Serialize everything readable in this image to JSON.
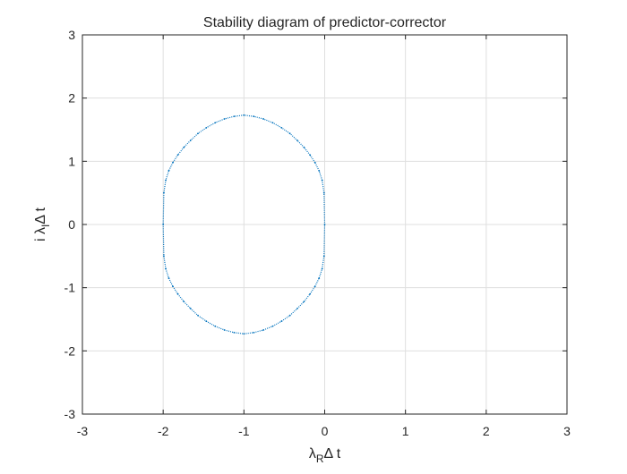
{
  "chart_data": {
    "type": "scatter",
    "title": "Stability diagram of predictor-corrector",
    "xlabel": {
      "base1": "λ",
      "sub1": "R",
      "rest": "Δ t"
    },
    "ylabel": {
      "pre": "i λ",
      "sub": "I",
      "rest": "Δ t"
    },
    "xlim": [
      -3,
      3
    ],
    "ylim": [
      -3,
      3
    ],
    "xticks": [
      -3,
      -2,
      -1,
      0,
      1,
      2,
      3
    ],
    "yticks": [
      -3,
      -2,
      -1,
      0,
      1,
      2,
      3
    ],
    "xtick_labels": [
      "-3",
      "-2",
      "-1",
      "0",
      "1",
      "2",
      "3"
    ],
    "ytick_labels": [
      "-3",
      "-2",
      "-1",
      "0",
      "1",
      "2",
      "3"
    ],
    "grid": true,
    "series": [
      {
        "color": "#0072BD",
        "marker": "dot",
        "x": [
          0,
          -0.0083,
          -0.0316,
          -0.0697,
          -0.1197,
          -0.1818,
          -0.2558,
          -0.3392,
          -0.4311,
          -0.5337,
          -0.6438,
          -0.7588,
          -0.8785,
          -1,
          -1.1215,
          -1.2412,
          -1.3562,
          -1.4663,
          -1.5689,
          -1.6608,
          -1.7442,
          -1.8182,
          -1.8803,
          -1.9303,
          -1.9684,
          -1.9917,
          -2,
          -1.9917,
          -1.9684,
          -1.9303,
          -1.8803,
          -1.8182,
          -1.7442,
          -1.6608,
          -1.5689,
          -1.4663,
          -1.3562,
          -1.2412,
          -1.1215,
          -1,
          -0.8785,
          -0.7588,
          -0.6438,
          -0.5337,
          -0.4311,
          -0.3392,
          -0.2558,
          -0.1818,
          -0.1197,
          -0.0697,
          -0.0316,
          -0.0083
        ],
        "y": [
          0,
          0.5,
          0.7,
          0.85,
          0.98,
          1.1,
          1.22,
          1.33,
          1.44,
          1.53,
          1.61,
          1.67,
          1.71,
          1.73,
          1.71,
          1.67,
          1.61,
          1.53,
          1.44,
          1.33,
          1.22,
          1.1,
          0.98,
          0.85,
          0.7,
          0.5,
          0,
          -0.5,
          -0.7,
          -0.85,
          -0.98,
          -1.1,
          -1.22,
          -1.33,
          -1.44,
          -1.53,
          -1.61,
          -1.67,
          -1.71,
          -1.73,
          -1.71,
          -1.67,
          -1.61,
          -1.53,
          -1.44,
          -1.33,
          -1.22,
          -1.1,
          -0.98,
          -0.85,
          -0.7,
          -0.5
        ]
      }
    ]
  }
}
